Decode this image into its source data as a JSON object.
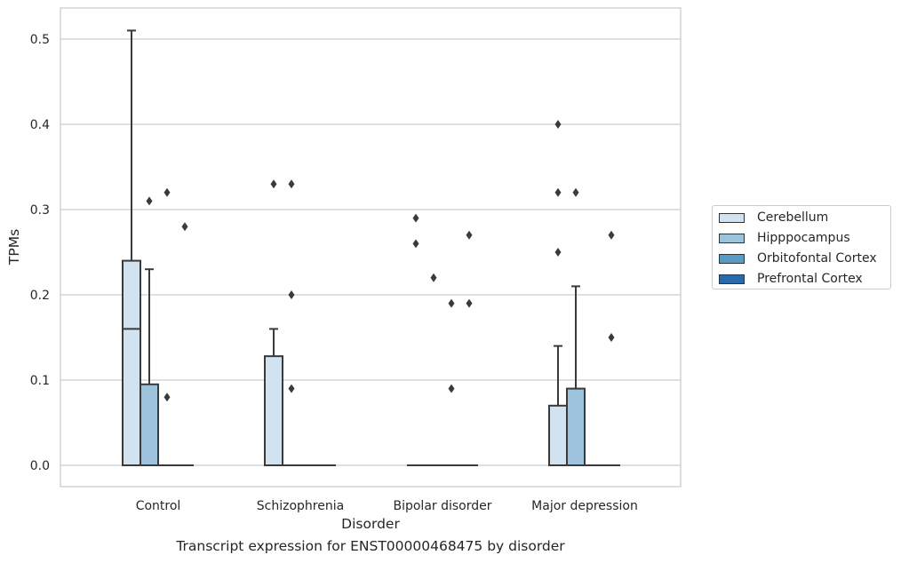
{
  "caption": "Transcript expression for ENST00000468475 by disorder",
  "chart_data": {
    "type": "box",
    "title": "",
    "xlabel": "Disorder",
    "ylabel": "TPMs",
    "ylim": [
      -0.025,
      0.537
    ],
    "yticks": [
      "0.0",
      "0.1",
      "0.2",
      "0.3",
      "0.4",
      "0.5"
    ],
    "grid": true,
    "legend_position": "right",
    "categories": [
      "Control",
      "Schizophrenia",
      "Bipolar disorder",
      "Major depression"
    ],
    "series": [
      {
        "name": "Cerebellum",
        "color": "#d1e2f1",
        "boxes": [
          {
            "q1": 0.0,
            "median": 0.16,
            "q3": 0.24,
            "whislo": 0.0,
            "whishi": 0.51,
            "fliers": []
          },
          {
            "q1": 0.0,
            "median": 0.0,
            "q3": 0.128,
            "whislo": 0.0,
            "whishi": 0.16,
            "fliers": [
              0.33
            ]
          },
          {
            "q1": 0.0,
            "median": 0.0,
            "q3": 0.0,
            "whislo": 0.0,
            "whishi": 0.0,
            "fliers": [
              0.29,
              0.26
            ]
          },
          {
            "q1": 0.0,
            "median": 0.0,
            "q3": 0.07,
            "whislo": 0.0,
            "whishi": 0.14,
            "fliers": [
              0.4,
              0.32,
              0.25
            ]
          }
        ]
      },
      {
        "name": "Hipppocampus",
        "color": "#9cc2dc",
        "boxes": [
          {
            "q1": 0.0,
            "median": 0.0,
            "q3": 0.095,
            "whislo": 0.0,
            "whishi": 0.23,
            "fliers": [
              0.31
            ]
          },
          {
            "q1": 0.0,
            "median": 0.0,
            "q3": 0.0,
            "whislo": 0.0,
            "whishi": 0.0,
            "fliers": [
              0.33,
              0.2,
              0.09
            ]
          },
          {
            "q1": 0.0,
            "median": 0.0,
            "q3": 0.0,
            "whislo": 0.0,
            "whishi": 0.0,
            "fliers": [
              0.22
            ]
          },
          {
            "q1": 0.0,
            "median": 0.0,
            "q3": 0.09,
            "whislo": 0.0,
            "whishi": 0.21,
            "fliers": [
              0.32
            ]
          }
        ]
      },
      {
        "name": "Orbitofontal Cortex",
        "color": "#5a9ac8",
        "boxes": [
          {
            "q1": 0.0,
            "median": 0.0,
            "q3": 0.0,
            "whislo": 0.0,
            "whishi": 0.0,
            "fliers": [
              0.32,
              0.08
            ]
          },
          {
            "q1": 0.0,
            "median": 0.0,
            "q3": 0.0,
            "whislo": 0.0,
            "whishi": 0.0,
            "fliers": []
          },
          {
            "q1": 0.0,
            "median": 0.0,
            "q3": 0.0,
            "whislo": 0.0,
            "whishi": 0.0,
            "fliers": [
              0.19,
              0.09
            ]
          },
          {
            "q1": 0.0,
            "median": 0.0,
            "q3": 0.0,
            "whislo": 0.0,
            "whishi": 0.0,
            "fliers": []
          }
        ]
      },
      {
        "name": "Prefrontal Cortex",
        "color": "#2a6aaa",
        "boxes": [
          {
            "q1": 0.0,
            "median": 0.0,
            "q3": 0.0,
            "whislo": 0.0,
            "whishi": 0.0,
            "fliers": [
              0.28
            ]
          },
          {
            "q1": 0.0,
            "median": 0.0,
            "q3": 0.0,
            "whislo": 0.0,
            "whishi": 0.0,
            "fliers": []
          },
          {
            "q1": 0.0,
            "median": 0.0,
            "q3": 0.0,
            "whislo": 0.0,
            "whishi": 0.0,
            "fliers": [
              0.27,
              0.19
            ]
          },
          {
            "q1": 0.0,
            "median": 0.0,
            "q3": 0.0,
            "whislo": 0.0,
            "whishi": 0.0,
            "fliers": [
              0.27,
              0.15
            ]
          }
        ]
      }
    ]
  }
}
